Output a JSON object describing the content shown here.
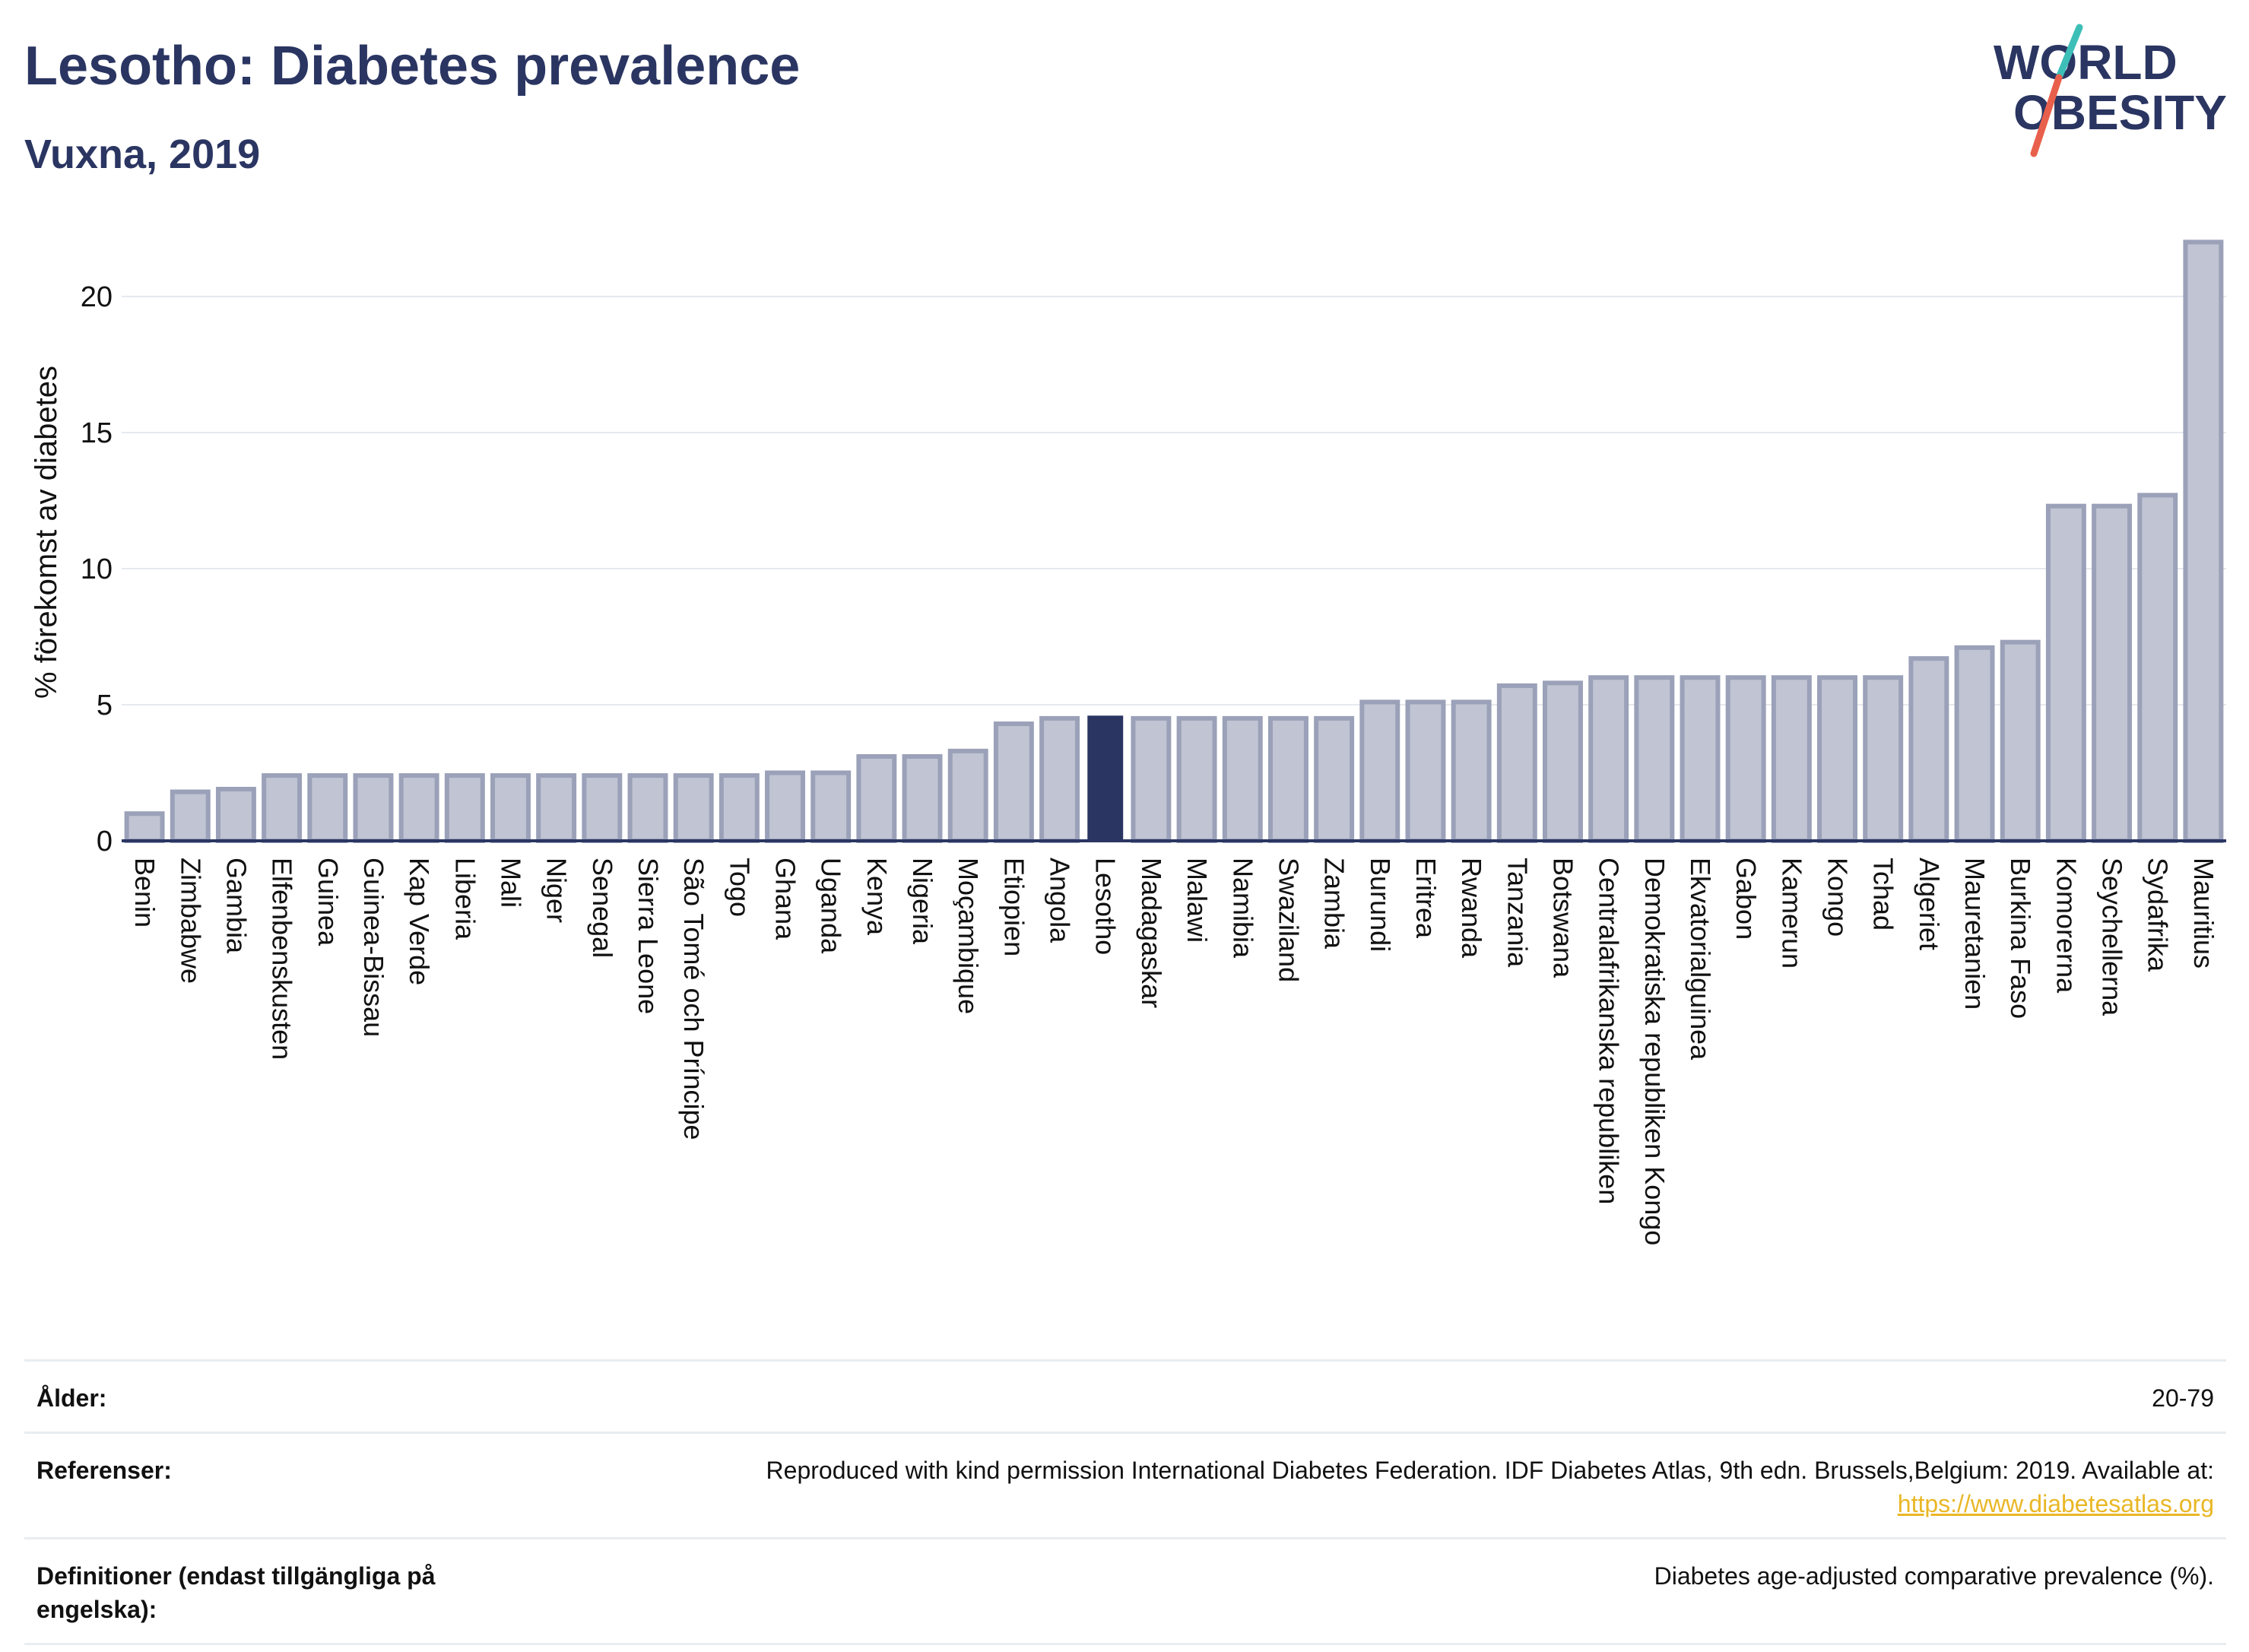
{
  "header": {
    "title": "Lesotho: Diabetes prevalence",
    "subtitle": "Vuxna, 2019"
  },
  "logo": {
    "line1": "WORLD",
    "line2": "OBESITY",
    "accent_teal": "#3dbfb8",
    "accent_red": "#e8604c"
  },
  "colors": {
    "bar": "#c0c4d3",
    "bar_border": "#9aa1b8",
    "highlight": "#2a3562",
    "grid": "#e6e9ee",
    "axis": "#2a3562"
  },
  "chart_data": {
    "type": "bar",
    "ylabel": "% förekomst av diabetes",
    "xlabel": "",
    "ylim": [
      0,
      23
    ],
    "yticks": [
      0,
      5,
      10,
      15,
      20
    ],
    "highlight": "Lesotho",
    "categories": [
      "Benin",
      "Zimbabwe",
      "Gambia",
      "Elfenbenskusten",
      "Guinea",
      "Guinea-Bissau",
      "Kap Verde",
      "Liberia",
      "Mali",
      "Niger",
      "Senegal",
      "Sierra Leone",
      "São Tomé och Príncipe",
      "Togo",
      "Ghana",
      "Uganda",
      "Kenya",
      "Nigeria",
      "Moçambique",
      "Etiopien",
      "Angola",
      "Lesotho",
      "Madagaskar",
      "Malawi",
      "Namibia",
      "Swaziland",
      "Zambia",
      "Burundi",
      "Eritrea",
      "Rwanda",
      "Tanzania",
      "Botswana",
      "Centralafrikanska republiken",
      "Demokratiska republiken Kongo",
      "Ekvatorialguinea",
      "Gabon",
      "Kamerun",
      "Kongo",
      "Tchad",
      "Algeriet",
      "Mauretanien",
      "Burkina Faso",
      "Komorerna",
      "Seychellerna",
      "Sydafrika",
      "Mauritius"
    ],
    "values": [
      1.0,
      1.8,
      1.9,
      2.4,
      2.4,
      2.4,
      2.4,
      2.4,
      2.4,
      2.4,
      2.4,
      2.4,
      2.4,
      2.4,
      2.5,
      2.5,
      3.1,
      3.1,
      3.3,
      4.3,
      4.5,
      4.6,
      4.5,
      4.5,
      4.5,
      4.5,
      4.5,
      5.1,
      5.1,
      5.1,
      5.7,
      5.8,
      6.0,
      6.0,
      6.0,
      6.0,
      6.0,
      6.0,
      6.0,
      6.7,
      7.1,
      7.3,
      12.3,
      12.3,
      12.7,
      22.0
    ]
  },
  "info": {
    "age_label": "Ålder:",
    "age_value": "20-79",
    "ref_label": "Referenser:",
    "ref_value": "Reproduced with kind permission International Diabetes Federation. IDF Diabetes Atlas, 9th edn. Brussels,Belgium: 2019. Available at:",
    "ref_link": "https://www.diabetesatlas.org",
    "def_label": "Definitioner (endast tillgängliga på engelska):",
    "def_value": "Diabetes age-adjusted comparative prevalence (%)."
  }
}
